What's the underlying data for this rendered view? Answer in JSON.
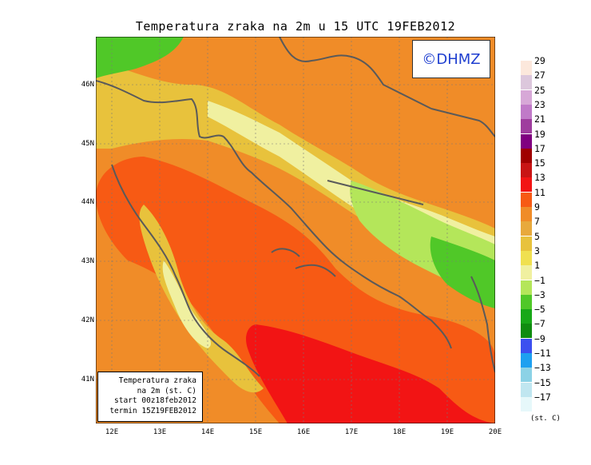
{
  "title": "Temperatura zraka na 2m u 15 UTC 19FEB2012",
  "logo_text": "©DHMZ",
  "info_box": {
    "line1": "Temperatura zraka",
    "line2": "na 2m (st. C)",
    "line3": "start 00z18feb2012",
    "line4": "termin 15Z19FEB2012"
  },
  "lat_labels": [
    "46N",
    "45N",
    "44N",
    "43N",
    "42N",
    "41N"
  ],
  "lon_labels": [
    "12E",
    "13E",
    "14E",
    "15E",
    "16E",
    "17E",
    "18E",
    "19E",
    "20E"
  ],
  "legend_units": "(st. C)",
  "legend": {
    "labels": [
      "29",
      "27",
      "25",
      "23",
      "21",
      "19",
      "17",
      "15",
      "13",
      "11",
      "9",
      "7",
      "5",
      "3",
      "1",
      "−1",
      "−3",
      "−5",
      "−7",
      "−9",
      "−11",
      "−13",
      "−15",
      "−17"
    ],
    "colors": [
      "#fce8dc",
      "#dcc7dc",
      "#d7a8d7",
      "#c07ac8",
      "#9f3d9e",
      "#800080",
      "#a00000",
      "#c81414",
      "#f21414",
      "#f75a14",
      "#f08c28",
      "#e8a93c",
      "#e8c23c",
      "#f0e050",
      "#f0f0a0",
      "#b4e65a",
      "#50c828",
      "#18a818",
      "#108c10",
      "#3c50f0",
      "#1ea0f0",
      "#8cd2e6",
      "#c0e6f0",
      "#e6f8fa"
    ]
  },
  "colors": {
    "warm_sea": "#f75a14",
    "hot_spots": "#f21414",
    "land_mild": "#f08c28",
    "mid_band": "#e8c23c",
    "cool_band": "#f0f0a0",
    "cold_green": "#50c828",
    "coastline": "#5a5a5a"
  }
}
